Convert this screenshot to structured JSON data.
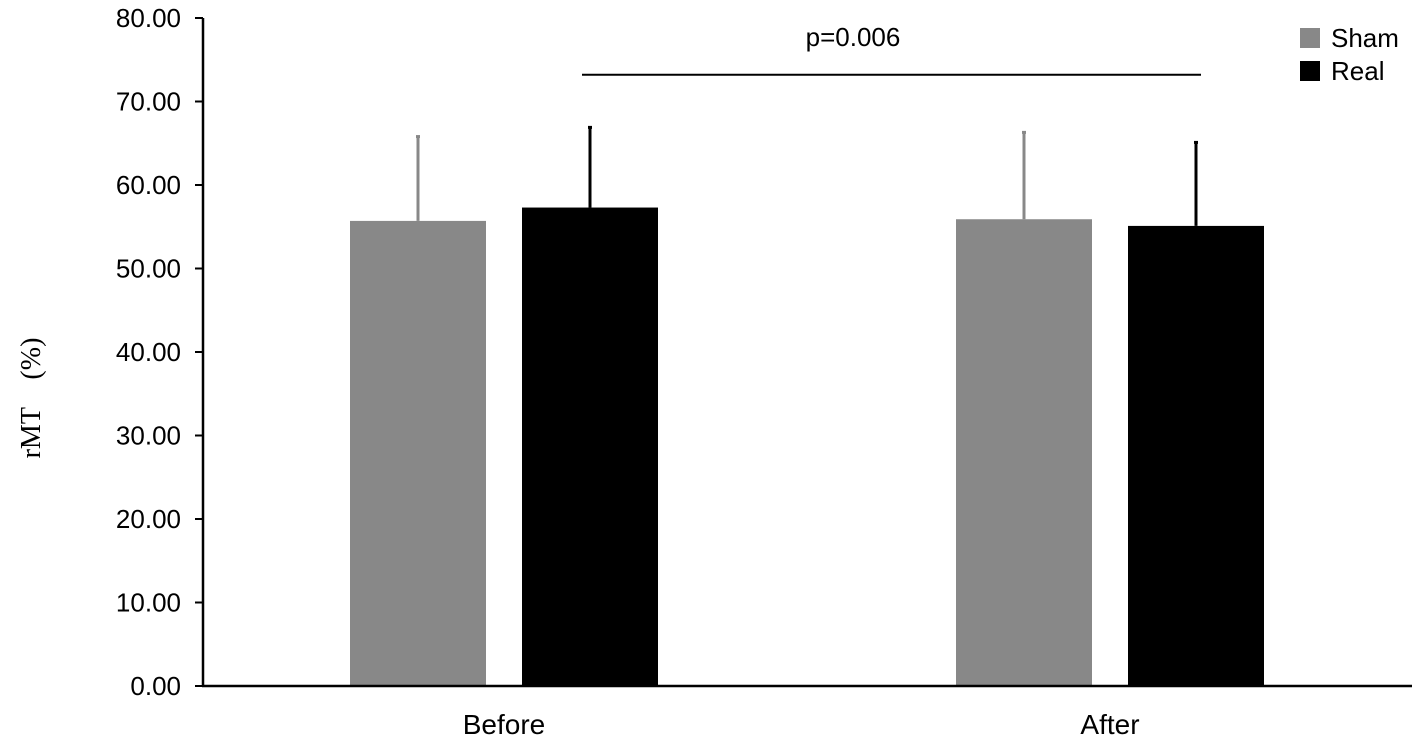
{
  "chart_data": {
    "type": "bar",
    "title": "",
    "xlabel": "",
    "ylabel": "rMT　(%)",
    "ylim": [
      0,
      80
    ],
    "yticks": [
      "0.00",
      "10.00",
      "20.00",
      "30.00",
      "40.00",
      "50.00",
      "60.00",
      "70.00",
      "80.00"
    ],
    "categories": [
      "Before",
      "After"
    ],
    "series": [
      {
        "name": "Sham",
        "color": "#888888",
        "values": [
          55.7,
          55.9
        ],
        "errors": [
          10.1,
          10.4
        ]
      },
      {
        "name": "Real",
        "color": "#000000",
        "values": [
          57.3,
          55.1
        ],
        "errors": [
          9.6,
          10.0
        ]
      }
    ],
    "grid": false,
    "legend_position": "top-right",
    "annotation": {
      "text": "p=0.006",
      "level": 73.2
    }
  }
}
